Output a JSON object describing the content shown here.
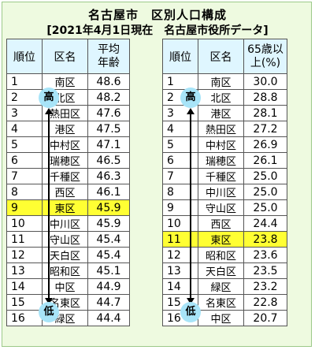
{
  "title": "名古屋市　区別人口構成",
  "subtitle": "[2021年4月1日現在　名古屋市役所データ]",
  "left_table": {
    "headers": {
      "rank": "順位",
      "ward": "区名",
      "value": "平均\n年齢"
    },
    "rows": [
      {
        "rank": "1",
        "ward": "南区",
        "value": "48.6"
      },
      {
        "rank": "2",
        "ward": "北区",
        "value": "48.2"
      },
      {
        "rank": "3",
        "ward": "熱田区",
        "value": "47.6"
      },
      {
        "rank": "4",
        "ward": "港区",
        "value": "47.5"
      },
      {
        "rank": "5",
        "ward": "中村区",
        "value": "47.1"
      },
      {
        "rank": "6",
        "ward": "瑞穂区",
        "value": "46.5"
      },
      {
        "rank": "7",
        "ward": "千種区",
        "value": "46.3"
      },
      {
        "rank": "8",
        "ward": "西区",
        "value": "46.1"
      },
      {
        "rank": "9",
        "ward": "東区",
        "value": "45.9"
      },
      {
        "rank": "10",
        "ward": "中川区",
        "value": "45.9"
      },
      {
        "rank": "11",
        "ward": "守山区",
        "value": "45.4"
      },
      {
        "rank": "12",
        "ward": "天白区",
        "value": "45.4"
      },
      {
        "rank": "13",
        "ward": "昭和区",
        "value": "45.1"
      },
      {
        "rank": "14",
        "ward": "中区",
        "value": "44.9"
      },
      {
        "rank": "15",
        "ward": "名東区",
        "value": "44.7"
      },
      {
        "rank": "16",
        "ward": "緑区",
        "value": "44.4"
      }
    ],
    "highlight_row": 8
  },
  "right_table": {
    "headers": {
      "rank": "順位",
      "ward": "区名",
      "value": "65歳以\n上(%)"
    },
    "rows": [
      {
        "rank": "1",
        "ward": "南区",
        "value": "30.0"
      },
      {
        "rank": "2",
        "ward": "北区",
        "value": "28.8"
      },
      {
        "rank": "3",
        "ward": "港区",
        "value": "28.1"
      },
      {
        "rank": "4",
        "ward": "熱田区",
        "value": "27.2"
      },
      {
        "rank": "5",
        "ward": "中村区",
        "value": "26.9"
      },
      {
        "rank": "6",
        "ward": "瑞穂区",
        "value": "26.1"
      },
      {
        "rank": "7",
        "ward": "千種区",
        "value": "25.0"
      },
      {
        "rank": "8",
        "ward": "中川区",
        "value": "25.0"
      },
      {
        "rank": "9",
        "ward": "守山区",
        "value": "25.0"
      },
      {
        "rank": "10",
        "ward": "西区",
        "value": "24.4"
      },
      {
        "rank": "11",
        "ward": "東区",
        "value": "23.8"
      },
      {
        "rank": "12",
        "ward": "昭和区",
        "value": "23.6"
      },
      {
        "rank": "13",
        "ward": "天白区",
        "value": "23.5"
      },
      {
        "rank": "14",
        "ward": "緑区",
        "value": "23.2"
      },
      {
        "rank": "15",
        "ward": "名東区",
        "value": "22.8"
      },
      {
        "rank": "16",
        "ward": "中区",
        "value": "20.7"
      }
    ],
    "highlight_row": 10
  },
  "badges": {
    "high": "高",
    "low": "低"
  },
  "colors": {
    "background": "#eefae0",
    "header": "#dff6ff",
    "highlight": "#ffff33",
    "badge": "#a8e4f8"
  }
}
